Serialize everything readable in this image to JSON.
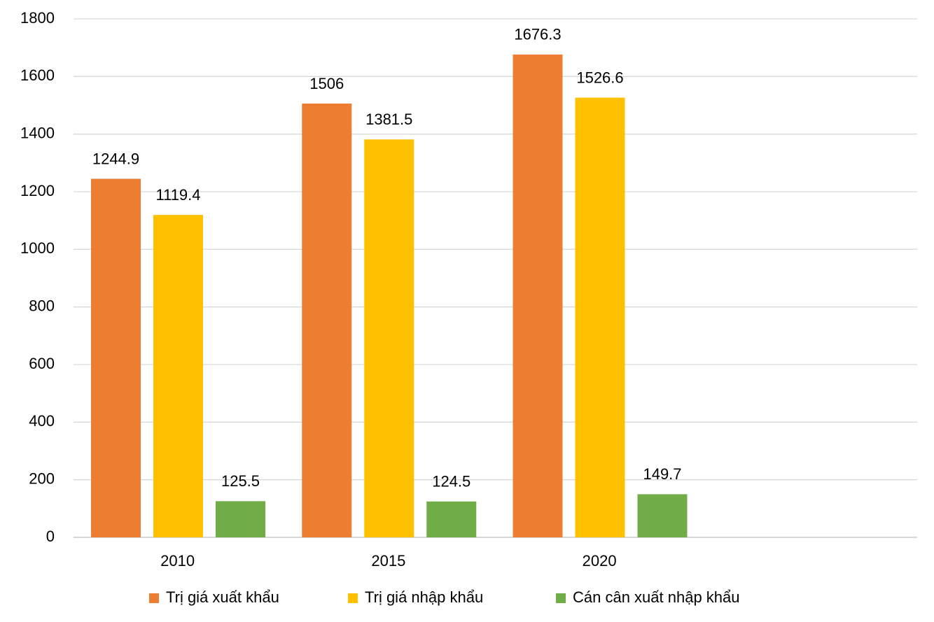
{
  "chart_data": {
    "type": "bar",
    "categories": [
      "2010",
      "2015",
      "2020",
      null
    ],
    "series": [
      {
        "name": "Trị giá xuất khẩu",
        "color": "#ed7d31",
        "values": [
          1244.9,
          1506,
          1676.3,
          null
        ]
      },
      {
        "name": "Trị giá nhập khẩu",
        "color": "#ffc000",
        "values": [
          1119.4,
          1381.5,
          1526.6,
          null
        ]
      },
      {
        "name": "Cán cân xuất nhập khẩu",
        "color": "#70ad47",
        "values": [
          125.5,
          124.5,
          149.7,
          null
        ]
      }
    ],
    "ylim": [
      0,
      1800
    ],
    "yticks": [
      0,
      200,
      400,
      600,
      800,
      1000,
      1200,
      1400,
      1600,
      1800
    ],
    "grid": true,
    "legend": "bottom"
  }
}
